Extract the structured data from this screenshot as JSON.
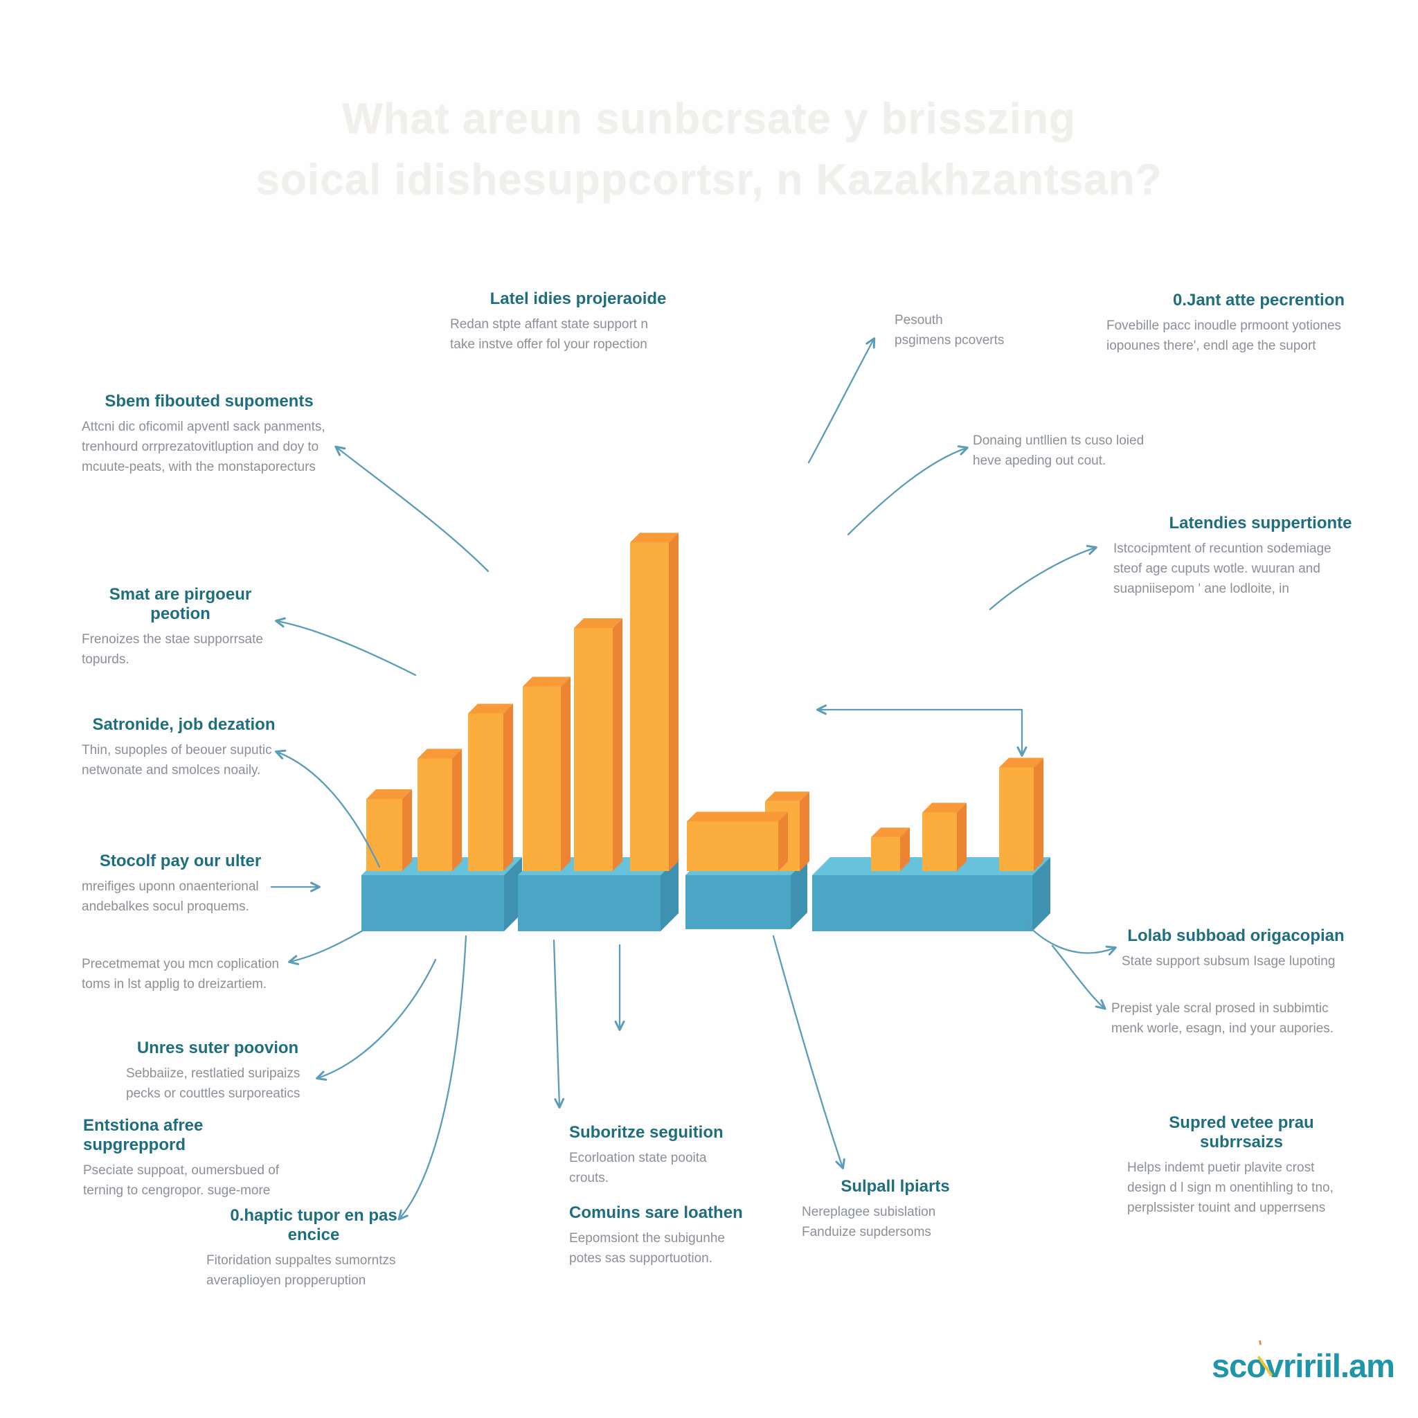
{
  "watermark_title": {
    "line1": "What areun sunbcrsate y brisszing",
    "line2": "soical idishesuppcortsr, n Kazakhzantsan?"
  },
  "logo": {
    "text": "scovririil.am"
  },
  "colors": {
    "heading": "#1f6e80",
    "body_text": "#8b9097",
    "arrow": "#5b9cb8",
    "watermark": "#f1efec",
    "logo_teal": "#1e95a9",
    "logo_orange": "#e8833a",
    "logo_yellow": "#f2c230"
  },
  "labels": {
    "latel": {
      "heading": "Latel idies projeraoide",
      "body": "Redan stpte affant state support n\ntake instve offer fol your ropection"
    },
    "pesouth": {
      "body": "Pesouth\npsgimens pcoverts"
    },
    "ojant": {
      "heading": "0.Jant atte pecrention",
      "body": "Fovebille pacc inoudle prmoont yotiones\niopounes there', endl age the suport"
    },
    "sbem": {
      "heading": "Sbem fibouted supoments",
      "body": "Attcni dic oficomil apventl sack panments,\ntrenhourd orrprezatovitluption and doy to\nmcuute-peats, with the monstaporecturs"
    },
    "donaing": {
      "body": "Donaing untllien ts cuso loied\nheve apeding out cout."
    },
    "latencies": {
      "heading": "Latendies suppertionte",
      "body": "Istcocipmtent of recuntion sodemiage\nsteof age cuputs wotle. wuuran and\nsuapniisepom ' ane lodloite, in"
    },
    "smat": {
      "heading": "Smat are pirgoeur peotion",
      "body": "Frenoizes the stae supporrsate\ntopurds."
    },
    "satronide": {
      "heading": "Satronide, job dezation",
      "body": "Thin, supoples of beouer suputic\nnetwonate and smolces noaily."
    },
    "stocolf": {
      "heading": "Stocolf pay our ulter",
      "body": "mreifiges uponn onaenterional\nandebalkes socul proquems."
    },
    "precetmemat": {
      "body": "Precetmemat you mcn coplication\ntoms in lst applig to dreizartiem."
    },
    "unres": {
      "heading": "Unres suter poovion",
      "body": "Sebbaiize, restlatied suripaizs\npecks or couttles surporeatics"
    },
    "entstiona": {
      "heading": "Entstiona afree supgreppord",
      "body": "Pseciate suppoat, oumersbued of\nterning to cengropor. suge-more"
    },
    "ohaptic": {
      "heading": "0.haptic tupor en pas encice",
      "body": "Fitoridation suppaltes sumorntzs\naveraplioyen propperuption"
    },
    "suboritze": {
      "heading": "Suboritze seguition",
      "body": "Ecorloation state pooita\ncrouts."
    },
    "comuins": {
      "heading": "Comuins sare loathen",
      "body": "Eepomsiont the subigunhe\npotes sas supportuotion."
    },
    "sulpall": {
      "heading": "Sulpall lpiarts",
      "body": "Nereplagee subislation\nFanduize supdersoms"
    },
    "lolab": {
      "heading": "Lolab subboad origacopian",
      "body": "State support subsum Isage lupoting"
    },
    "prepist": {
      "body": "Prepist yale scral prosed in subbimtic\nmenk worle, esagn, ind your aupories."
    },
    "supred": {
      "heading": "Supred vetee prau subrrsaizs",
      "body": "Helps indemt puetir plavite crost\ndesign d l sign m onentihling to tno,\nperplssister touint and upperrsens"
    }
  },
  "chart_data": {
    "type": "bar",
    "style": "3d-isometric-infographic",
    "note": "Decorative 3D bar chart on blue platforms; no axes, tick labels or data labels are visible. Bar heights are relative estimates read from the image.",
    "legend": "none",
    "palette": {
      "bar_front": "#FBAE3E",
      "bar_side": "#ED8434",
      "bar_top": "#F79A37",
      "platform_front": "#4AA6C4",
      "platform_side": "#3E92AF",
      "platform_top": "#67C3DC"
    },
    "groups": [
      {
        "name": "platform-1",
        "bars": [
          1.6,
          2.5,
          3.5
        ]
      },
      {
        "name": "platform-2",
        "bars": [
          4.1,
          5.4,
          7.3
        ]
      },
      {
        "name": "platform-3",
        "bars": [
          1.1,
          1.55
        ],
        "note": "first bar is wide and low, second rises behind its right end"
      },
      {
        "name": "platform-4",
        "bars": [
          0.75,
          1.3,
          2.3
        ]
      }
    ]
  }
}
